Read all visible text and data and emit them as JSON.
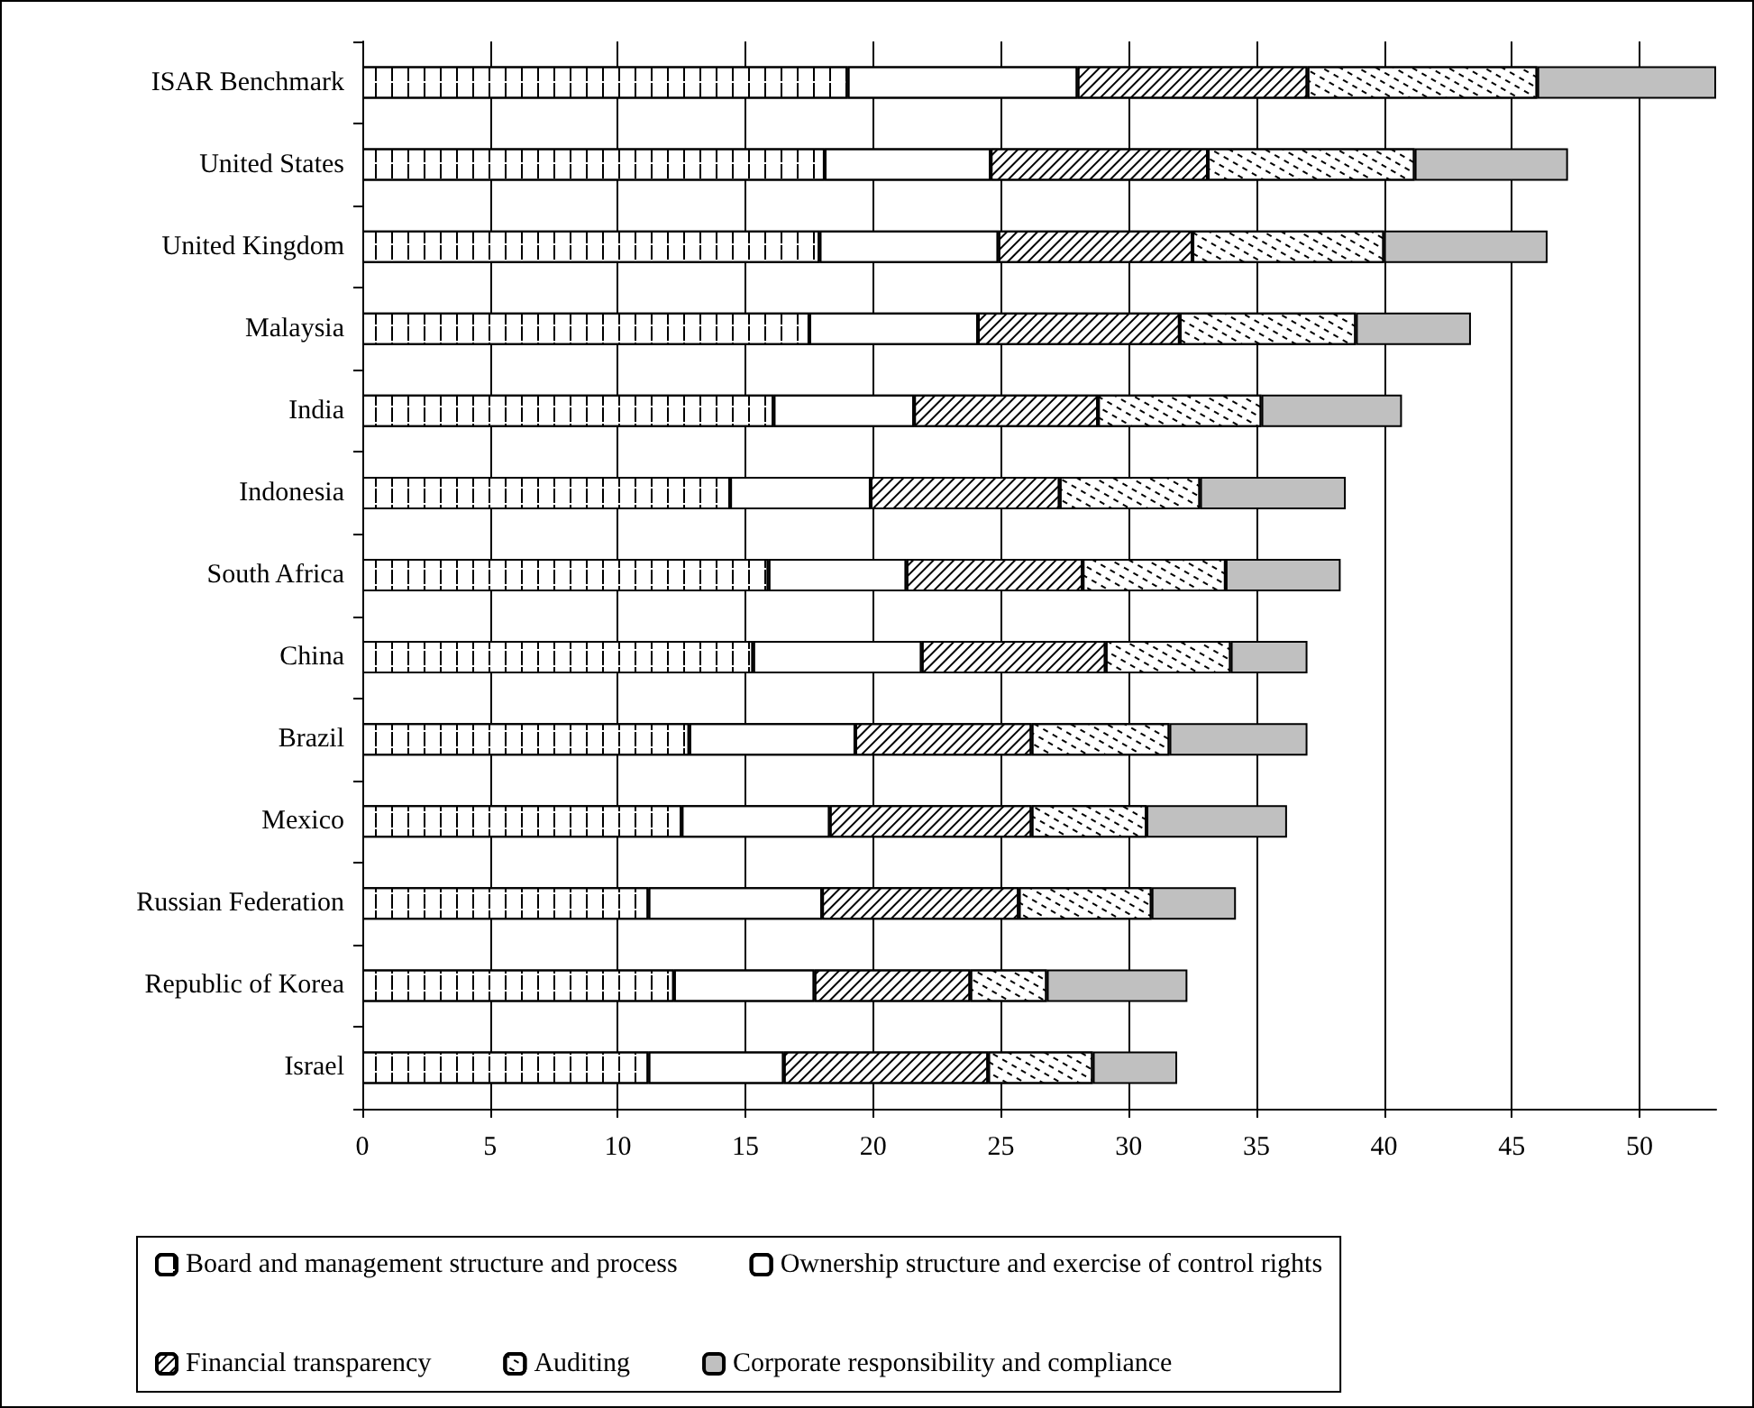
{
  "chart_data": {
    "type": "bar",
    "orientation": "horizontal",
    "stacked": true,
    "categories": [
      "ISAR Benchmark",
      "United States",
      "United Kingdom",
      "Malaysia",
      "India",
      "Indonesia",
      "South Africa",
      "China",
      "Brazil",
      "Mexico",
      "Russian Federation",
      "Republic of Korea",
      "Israel"
    ],
    "series": [
      {
        "name": "Board and management structure and process",
        "color": "#ffffff",
        "values": [
          19,
          18.1,
          17.9,
          17.5,
          16.1,
          14.4,
          15.9,
          15.3,
          12.8,
          12.5,
          11.2,
          12.2,
          11.2
        ]
      },
      {
        "name": "Ownership structure and exercise of control rights",
        "color": "#ffffff",
        "values": [
          9,
          6.5,
          7.0,
          6.6,
          5.5,
          5.5,
          5.4,
          6.6,
          6.5,
          5.8,
          6.8,
          5.5,
          5.3
        ]
      },
      {
        "name": "Financial transparency",
        "color": "#ffffff",
        "values": [
          9,
          8.5,
          7.6,
          7.9,
          7.2,
          7.4,
          6.9,
          7.2,
          6.9,
          7.9,
          7.7,
          6.1,
          8.0
        ]
      },
      {
        "name": "Auditing",
        "color": "#ffffff",
        "values": [
          9,
          8.1,
          7.5,
          6.9,
          6.4,
          5.5,
          5.6,
          4.9,
          5.4,
          4.5,
          5.2,
          3.0,
          4.1
        ]
      },
      {
        "name": "Corporate responsibility and compliance",
        "color": "#c0c0c0",
        "values": [
          7,
          6.0,
          6.4,
          4.5,
          5.5,
          5.7,
          4.5,
          3.0,
          5.4,
          5.5,
          3.3,
          5.5,
          3.3
        ]
      }
    ],
    "xlim": [
      0,
      53
    ],
    "xticks": [
      0,
      5,
      10,
      15,
      20,
      25,
      30,
      35,
      40,
      45,
      50
    ],
    "grid": "x",
    "legend": "bottom"
  }
}
